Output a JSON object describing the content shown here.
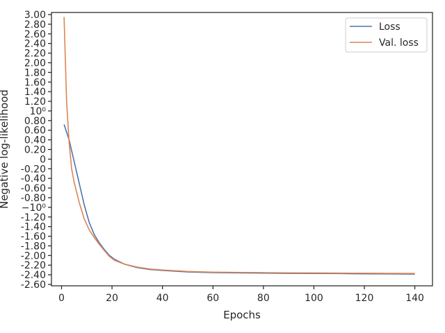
{
  "chart_data": {
    "type": "line",
    "title": "",
    "xlabel": "Epochs",
    "ylabel": "Negative log-likelihood",
    "xlim": [
      -4,
      147
    ],
    "xticks": [
      0,
      20,
      40,
      60,
      80,
      100,
      120,
      140
    ],
    "xtick_labels": [
      "0",
      "20",
      "40",
      "60",
      "80",
      "100",
      "120",
      "140"
    ],
    "ylim": [
      -2.6,
      3.0
    ],
    "yticks": [
      3.0,
      2.8,
      2.6,
      2.4,
      2.2,
      2.0,
      1.8,
      1.6,
      1.4,
      1.2,
      1.0,
      0.8,
      0.6,
      0.4,
      0.2,
      0.0,
      -0.2,
      -0.4,
      -0.6,
      -0.8,
      -1.0,
      -1.2,
      -1.4,
      -1.6,
      -1.8,
      -2.0,
      -2.2,
      -2.4,
      -2.6
    ],
    "ytick_labels": [
      "3.00",
      "2.80",
      "2.60",
      "2.40",
      "2.20",
      "2.00",
      "1.80",
      "1.60",
      "1.40",
      "1.20",
      "10⁰",
      "0.80",
      "0.60",
      "0.40",
      "0.20",
      "0",
      "-0.20",
      "-0.40",
      "-0.60",
      "-0.80",
      "−10⁰",
      "-1.20",
      "-1.40",
      "-1.60",
      "-1.80",
      "-2.00",
      "-2.20",
      "-2.40",
      "-2.60"
    ],
    "grid": false,
    "legend_position": "top-right",
    "series": [
      {
        "name": "Loss",
        "color": "#4c72b0",
        "x": [
          1,
          3,
          5,
          7,
          9,
          11,
          13,
          15,
          17,
          19,
          21,
          25,
          30,
          35,
          40,
          50,
          60,
          70,
          80,
          90,
          100,
          110,
          120,
          130,
          140
        ],
        "y": [
          0.72,
          0.4,
          -0.05,
          -0.5,
          -0.95,
          -1.32,
          -1.57,
          -1.74,
          -1.88,
          -2.0,
          -2.08,
          -2.18,
          -2.25,
          -2.29,
          -2.31,
          -2.34,
          -2.355,
          -2.36,
          -2.365,
          -2.37,
          -2.372,
          -2.375,
          -2.38,
          -2.382,
          -2.385
        ]
      },
      {
        "name": "Val. loss",
        "color": "#dd8452",
        "x": [
          1,
          2,
          3,
          4,
          5,
          7,
          9,
          11,
          13,
          15,
          17,
          19,
          21,
          25,
          30,
          35,
          40,
          50,
          60,
          70,
          80,
          90,
          100,
          110,
          120,
          130,
          140
        ],
        "y": [
          2.95,
          1.2,
          0.35,
          -0.2,
          -0.48,
          -0.9,
          -1.24,
          -1.47,
          -1.63,
          -1.77,
          -1.9,
          -2.02,
          -2.1,
          -2.18,
          -2.24,
          -2.28,
          -2.3,
          -2.33,
          -2.345,
          -2.35,
          -2.355,
          -2.36,
          -2.362,
          -2.365,
          -2.367,
          -2.37,
          -2.372
        ]
      }
    ]
  }
}
